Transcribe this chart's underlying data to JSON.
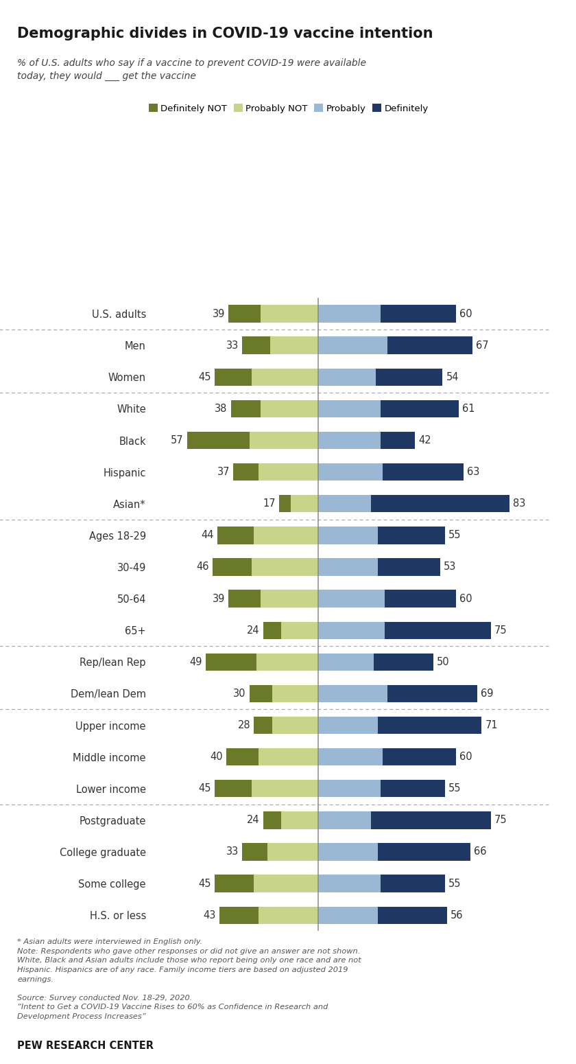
{
  "title": "Demographic divides in COVID-19 vaccine intention",
  "subtitle": "% of U.S. adults who say if a vaccine to prevent COVID-19 were available\ntoday, they would ___ get the vaccine",
  "categories": [
    "U.S. adults",
    "Men",
    "Women",
    "White",
    "Black",
    "Hispanic",
    "Asian*",
    "Ages 18-29",
    "30-49",
    "50-64",
    "65+",
    "Rep/lean Rep",
    "Dem/lean Dem",
    "Upper income",
    "Middle income",
    "Lower income",
    "Postgraduate",
    "College graduate",
    "Some college",
    "H.S. or less"
  ],
  "def_not": [
    14,
    12,
    16,
    13,
    27,
    11,
    5,
    16,
    17,
    14,
    8,
    22,
    10,
    8,
    14,
    16,
    8,
    11,
    17,
    17
  ],
  "prob_not": [
    25,
    21,
    29,
    25,
    30,
    26,
    12,
    28,
    29,
    25,
    16,
    27,
    20,
    20,
    26,
    29,
    16,
    22,
    28,
    26
  ],
  "probably": [
    27,
    30,
    25,
    27,
    27,
    28,
    23,
    26,
    26,
    29,
    29,
    24,
    30,
    26,
    28,
    27,
    23,
    26,
    27,
    26
  ],
  "definitely": [
    33,
    37,
    29,
    34,
    15,
    35,
    60,
    29,
    27,
    31,
    46,
    26,
    39,
    45,
    32,
    28,
    52,
    40,
    28,
    30
  ],
  "left_labels": [
    39,
    33,
    45,
    38,
    57,
    37,
    17,
    44,
    46,
    39,
    24,
    49,
    30,
    28,
    40,
    45,
    24,
    33,
    45,
    43
  ],
  "right_labels": [
    60,
    67,
    54,
    61,
    42,
    63,
    83,
    55,
    53,
    60,
    75,
    50,
    69,
    71,
    60,
    55,
    75,
    66,
    55,
    56
  ],
  "colors": {
    "def_not": "#6b7a2a",
    "prob_not": "#c8d48a",
    "probably": "#9ab7d3",
    "definitely": "#1f3864"
  },
  "group_dividers": [
    0.5,
    2.5,
    6.5,
    10.5,
    12.5,
    15.5
  ],
  "footnote_line1": "* Asian adults were interviewed in English only.",
  "footnote_line2": "Note: Respondents who gave other responses or did not give an answer are not shown.",
  "footnote_line3": "White, Black and Asian adults include those who report being only one race and are not",
  "footnote_line4": "Hispanic. Hispanics are of any race. Family income tiers are based on adjusted 2019",
  "footnote_line5": "earnings.",
  "footnote_line6": "Source: Survey conducted Nov. 18-29, 2020.",
  "footnote_line7": "“Intent to Get a COVID-19 Vaccine Rises to 60% as Confidence in Research and",
  "footnote_line8": "Development Process Increases”",
  "source": "PEW RESEARCH CENTER",
  "legend_labels": [
    "Definitely NOT",
    "Probably NOT",
    "Probably",
    "Definitely"
  ],
  "bg_color": "#ffffff",
  "bar_height": 0.55,
  "xlim_left": -72,
  "xlim_right": 92
}
